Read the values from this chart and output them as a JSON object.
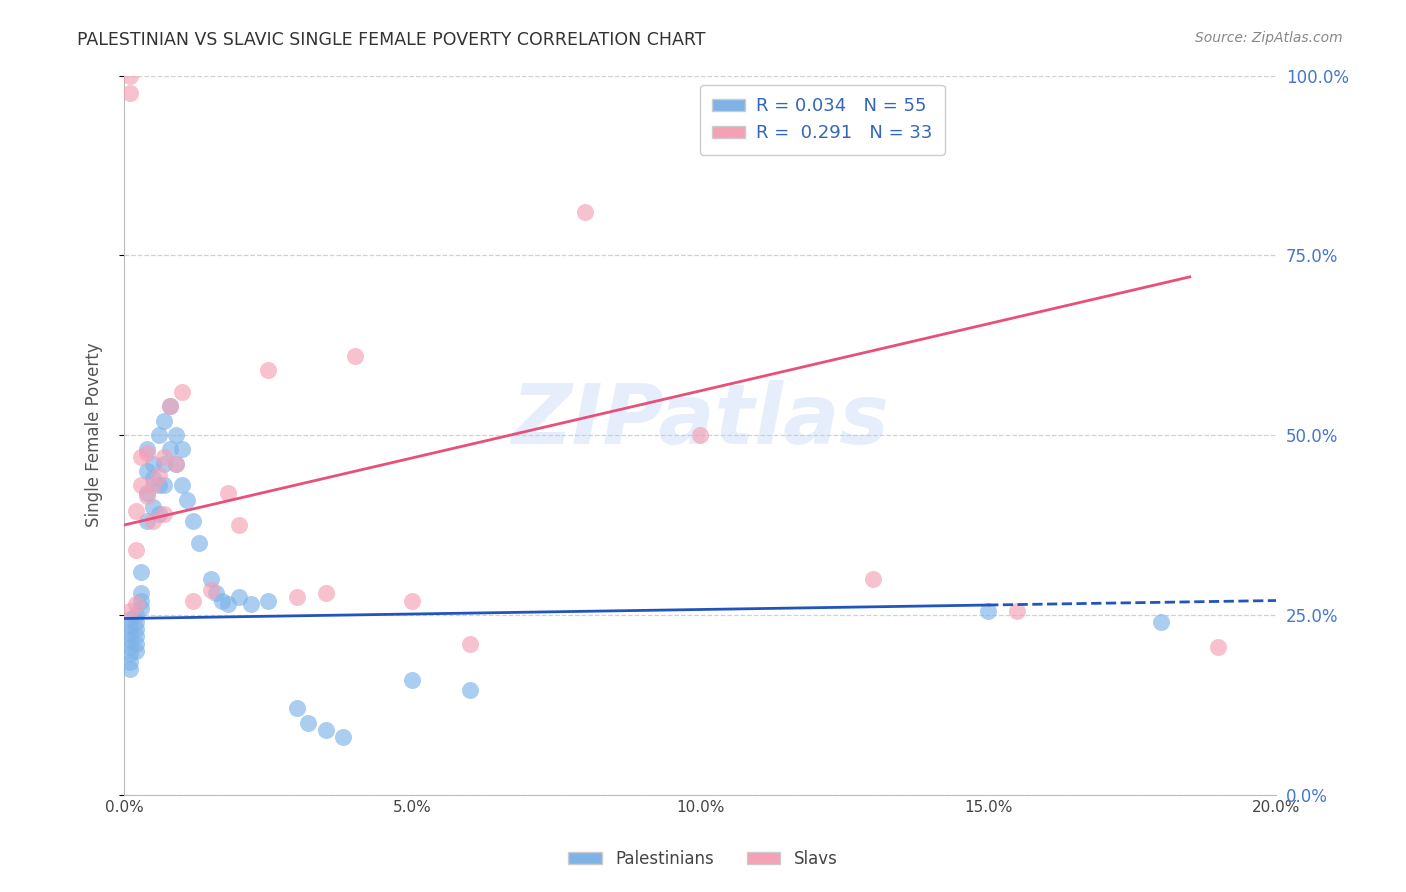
{
  "title": "PALESTINIAN VS SLAVIC SINGLE FEMALE POVERTY CORRELATION CHART",
  "source": "Source: ZipAtlas.com",
  "ylabel_left": "Single Female Poverty",
  "xlim": [
    0.0,
    0.2
  ],
  "ylim": [
    0.0,
    1.0
  ],
  "y_ticks": [
    0.0,
    0.25,
    0.5,
    0.75,
    1.0
  ],
  "x_ticks": [
    0.0,
    0.05,
    0.1,
    0.15,
    0.2
  ],
  "legend_blue_label": "R = 0.034   N = 55",
  "legend_pink_label": "R =  0.291   N = 33",
  "bottom_legend_blue": "Palestinians",
  "bottom_legend_pink": "Slavs",
  "blue_color": "#7fb3e8",
  "pink_color": "#f4a0b5",
  "trend_blue_color": "#2255bb",
  "trend_pink_color": "#e8507a",
  "watermark": "ZIPatlas",
  "blue_R": 0.034,
  "pink_R": 0.291,
  "blue_N": 55,
  "pink_N": 33,
  "blue_trend": [
    0.245,
    0.27
  ],
  "pink_trend": [
    0.375,
    0.72
  ],
  "pink_trend_x": [
    0.0,
    0.185
  ],
  "blue_x": [
    0.001,
    0.001,
    0.001,
    0.001,
    0.001,
    0.001,
    0.001,
    0.001,
    0.002,
    0.002,
    0.002,
    0.002,
    0.002,
    0.002,
    0.003,
    0.003,
    0.003,
    0.003,
    0.004,
    0.004,
    0.004,
    0.004,
    0.005,
    0.005,
    0.005,
    0.006,
    0.006,
    0.006,
    0.007,
    0.007,
    0.007,
    0.008,
    0.008,
    0.009,
    0.009,
    0.01,
    0.01,
    0.011,
    0.012,
    0.013,
    0.015,
    0.016,
    0.017,
    0.018,
    0.02,
    0.022,
    0.025,
    0.03,
    0.032,
    0.035,
    0.038,
    0.05,
    0.06,
    0.15,
    0.18
  ],
  "blue_y": [
    0.245,
    0.235,
    0.225,
    0.215,
    0.205,
    0.195,
    0.185,
    0.175,
    0.25,
    0.24,
    0.23,
    0.22,
    0.21,
    0.2,
    0.26,
    0.27,
    0.28,
    0.31,
    0.38,
    0.42,
    0.45,
    0.48,
    0.4,
    0.44,
    0.46,
    0.39,
    0.43,
    0.5,
    0.43,
    0.46,
    0.52,
    0.48,
    0.54,
    0.46,
    0.5,
    0.48,
    0.43,
    0.41,
    0.38,
    0.35,
    0.3,
    0.28,
    0.27,
    0.265,
    0.275,
    0.265,
    0.27,
    0.12,
    0.1,
    0.09,
    0.08,
    0.16,
    0.145,
    0.255,
    0.24
  ],
  "pink_x": [
    0.001,
    0.001,
    0.001,
    0.002,
    0.002,
    0.002,
    0.003,
    0.003,
    0.004,
    0.004,
    0.005,
    0.005,
    0.006,
    0.007,
    0.007,
    0.008,
    0.009,
    0.01,
    0.012,
    0.015,
    0.018,
    0.02,
    0.025,
    0.03,
    0.035,
    0.04,
    0.05,
    0.06,
    0.08,
    0.1,
    0.13,
    0.155,
    0.19
  ],
  "pink_y": [
    1.0,
    0.975,
    0.255,
    0.265,
    0.34,
    0.395,
    0.43,
    0.47,
    0.415,
    0.475,
    0.43,
    0.38,
    0.445,
    0.39,
    0.47,
    0.54,
    0.46,
    0.56,
    0.27,
    0.285,
    0.42,
    0.375,
    0.59,
    0.275,
    0.28,
    0.61,
    0.27,
    0.21,
    0.81,
    0.5,
    0.3,
    0.255,
    0.205
  ]
}
